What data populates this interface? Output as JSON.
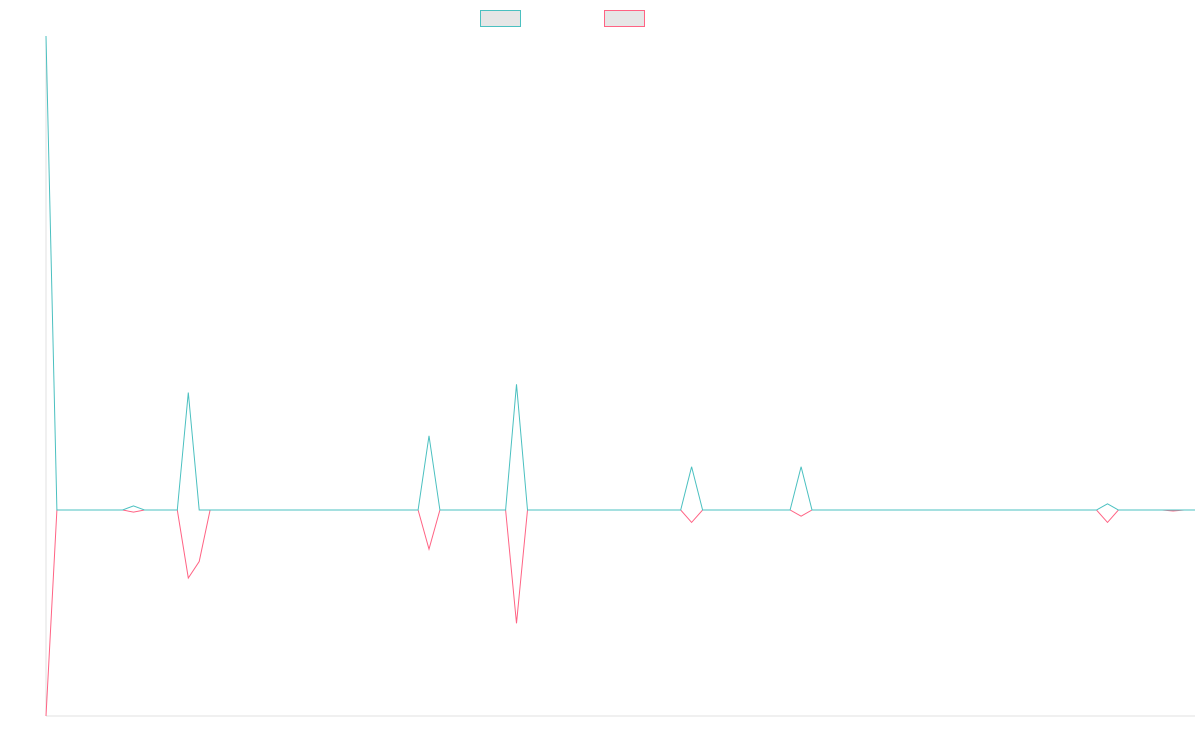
{
  "colors": {
    "series_a": "#4bc0c0",
    "series_b": "#ff6384",
    "legend_fill": "#e6e6e6",
    "axis": "#e0e0e0"
  },
  "chart_data": {
    "type": "line",
    "title": "",
    "xlabel": "",
    "ylabel": "",
    "ylim": [
      -10,
      23
    ],
    "grid": false,
    "legend_position": "top-center",
    "x": [
      0,
      1,
      2,
      3,
      4,
      5,
      6,
      7,
      8,
      9,
      10,
      11,
      12,
      13,
      14,
      15,
      16,
      17,
      18,
      19,
      20,
      21,
      22,
      23,
      24,
      25,
      26,
      27,
      28,
      29,
      30,
      31,
      32,
      33,
      34,
      35,
      36,
      37,
      38,
      39,
      40,
      41,
      42,
      43,
      44,
      45,
      46,
      47,
      48,
      49,
      50,
      51,
      52,
      53,
      54,
      55,
      56,
      57,
      58,
      59,
      60,
      61,
      62,
      63,
      64,
      65,
      66,
      67,
      68,
      69,
      70,
      71,
      72,
      73,
      74,
      75,
      76,
      77,
      78,
      79,
      80,
      81,
      82,
      83,
      84,
      85,
      86,
      87,
      88,
      89,
      90,
      91,
      92,
      93,
      94,
      95,
      96,
      97,
      98,
      99,
      100,
      101,
      102,
      103,
      104,
      105
    ],
    "series": [
      {
        "name": "",
        "color": "#4bc0c0",
        "values": [
          23.0,
          0,
          0,
          0,
          0,
          0,
          0,
          0,
          0.2,
          0,
          0,
          0,
          0,
          5.7,
          0,
          0,
          0,
          0,
          0,
          0,
          0,
          0,
          0,
          0,
          0,
          0,
          0,
          0,
          0,
          0,
          0,
          0,
          0,
          0,
          0,
          3.6,
          0,
          0,
          0,
          0,
          0,
          0,
          0,
          6.1,
          0,
          0,
          0,
          0,
          0,
          0,
          0,
          0,
          0,
          0,
          0,
          0,
          0,
          0,
          0,
          2.1,
          0,
          0,
          0,
          0,
          0,
          0,
          0,
          0,
          0,
          2.1,
          0,
          0,
          0,
          0,
          0,
          0,
          0,
          0,
          0,
          0,
          0,
          0,
          0,
          0,
          0,
          0,
          0,
          0,
          0,
          0,
          0,
          0,
          0,
          0,
          0,
          0,
          0,
          0.3,
          0,
          0,
          0,
          0,
          0,
          0,
          0,
          0
        ]
      },
      {
        "name": "",
        "color": "#ff6384",
        "values": [
          -10.0,
          0,
          0,
          0,
          0,
          0,
          0,
          0,
          -0.1,
          0,
          0,
          0,
          0,
          -3.3,
          -2.5,
          0,
          0,
          0,
          0,
          0,
          0,
          0,
          0,
          0,
          0,
          0,
          0,
          0,
          0,
          0,
          0,
          0,
          0,
          0,
          0,
          -1.9,
          0,
          0,
          0,
          0,
          0,
          0,
          0,
          -5.5,
          0,
          0,
          0,
          0,
          0,
          0,
          0,
          0,
          0,
          0,
          0,
          0,
          0,
          0,
          0,
          -0.6,
          0,
          0,
          0,
          0,
          0,
          0,
          0,
          0,
          0,
          -0.3,
          0,
          0,
          0,
          0,
          0,
          0,
          0,
          0,
          0,
          0,
          0,
          0,
          0,
          0,
          0,
          0,
          0,
          0,
          0,
          0,
          0,
          0,
          0,
          0,
          0,
          0,
          0,
          -0.6,
          0,
          0,
          0,
          0,
          0,
          -0.05,
          0,
          0
        ]
      }
    ]
  }
}
